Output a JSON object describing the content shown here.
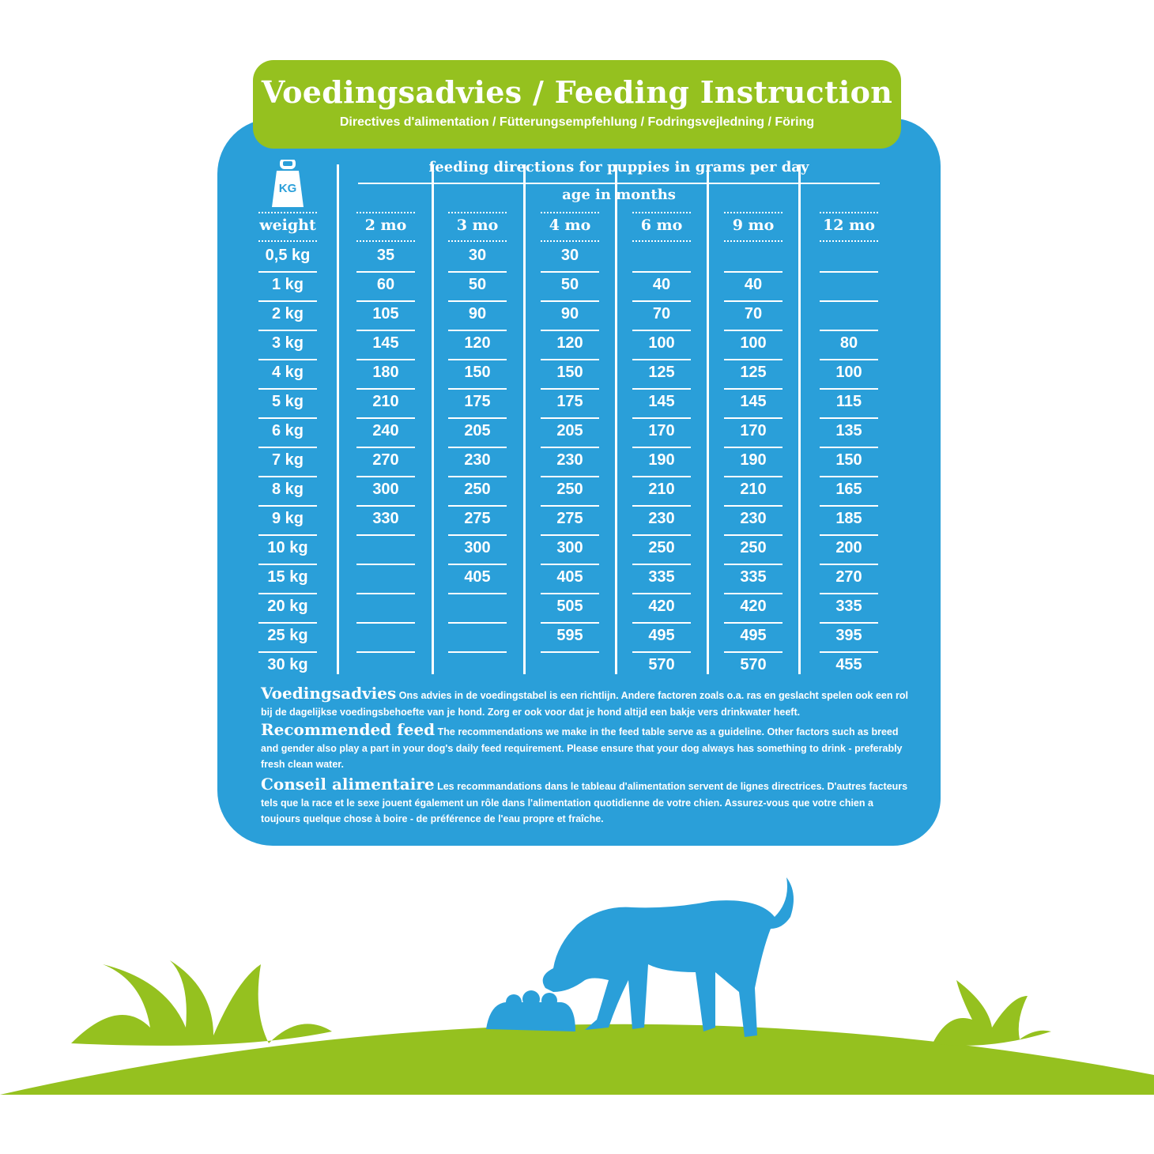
{
  "header": {
    "title": "Voedingsadvies / Feeding Instruction",
    "subtitle": "Directives d'alimentation / Fütterungsempfehlung / Fodringsvejledning / Föring"
  },
  "table": {
    "weight_icon_label": "KG",
    "caption": "feeding directions for puppies in grams per day",
    "age_caption": "age in months",
    "weight_header": "weight",
    "columns": [
      "2 mo",
      "3 mo",
      "4 mo",
      "6 mo",
      "9 mo",
      "12 mo"
    ],
    "rows": [
      {
        "weight": "0,5 kg",
        "values": [
          "35",
          "30",
          "30",
          "",
          "",
          ""
        ]
      },
      {
        "weight": "1 kg",
        "values": [
          "60",
          "50",
          "50",
          "40",
          "40",
          ""
        ]
      },
      {
        "weight": "2 kg",
        "values": [
          "105",
          "90",
          "90",
          "70",
          "70",
          ""
        ]
      },
      {
        "weight": "3 kg",
        "values": [
          "145",
          "120",
          "120",
          "100",
          "100",
          "80"
        ]
      },
      {
        "weight": "4 kg",
        "values": [
          "180",
          "150",
          "150",
          "125",
          "125",
          "100"
        ]
      },
      {
        "weight": "5 kg",
        "values": [
          "210",
          "175",
          "175",
          "145",
          "145",
          "115"
        ]
      },
      {
        "weight": "6 kg",
        "values": [
          "240",
          "205",
          "205",
          "170",
          "170",
          "135"
        ]
      },
      {
        "weight": "7 kg",
        "values": [
          "270",
          "230",
          "230",
          "190",
          "190",
          "150"
        ]
      },
      {
        "weight": "8 kg",
        "values": [
          "300",
          "250",
          "250",
          "210",
          "210",
          "165"
        ]
      },
      {
        "weight": "9 kg",
        "values": [
          "330",
          "275",
          "275",
          "230",
          "230",
          "185"
        ]
      },
      {
        "weight": "10 kg",
        "values": [
          "",
          "300",
          "300",
          "250",
          "250",
          "200"
        ]
      },
      {
        "weight": "15 kg",
        "values": [
          "",
          "405",
          "405",
          "335",
          "335",
          "270"
        ]
      },
      {
        "weight": "20 kg",
        "values": [
          "",
          "",
          "505",
          "420",
          "420",
          "335"
        ]
      },
      {
        "weight": "25 kg",
        "values": [
          "",
          "",
          "595",
          "495",
          "495",
          "395"
        ]
      },
      {
        "weight": "30 kg",
        "values": [
          "",
          "",
          "",
          "570",
          "570",
          "455"
        ]
      }
    ]
  },
  "notes": [
    {
      "lead": "Voedingsadvies",
      "text": "Ons advies in de voedingstabel is een richtlijn. Andere factoren zoals o.a. ras en geslacht spelen ook een rol bij de dagelijkse voedingsbehoefte van je hond. Zorg er ook voor dat je hond altijd een bakje vers drinkwater heeft."
    },
    {
      "lead": "Recommended feed",
      "text": "The recommendations we make in the feed table serve as a guideline. Other factors such as breed and gender also play a part in your dog's daily feed requirement. Please ensure that your dog always has something to drink - preferably fresh clean water."
    },
    {
      "lead": "Conseil alimentaire",
      "text": "Les recommandations dans le tableau d'alimentation servent de lignes directrices. D'autres facteurs tels que la race et le sexe jouent également un rôle dans l'alimentation quotidienne de votre chien. Assurez-vous que votre chien a toujours quelque chose à boire - de préférence de l'eau propre et fraîche."
    }
  ],
  "colors": {
    "blue": "#2a9fd9",
    "green": "#95c11f",
    "text": "#ffffff"
  },
  "illustration": {
    "icons": [
      "weight-kg-icon",
      "dog-eating-icon",
      "food-bowl-icon",
      "grass-icon",
      "hill-icon"
    ]
  }
}
